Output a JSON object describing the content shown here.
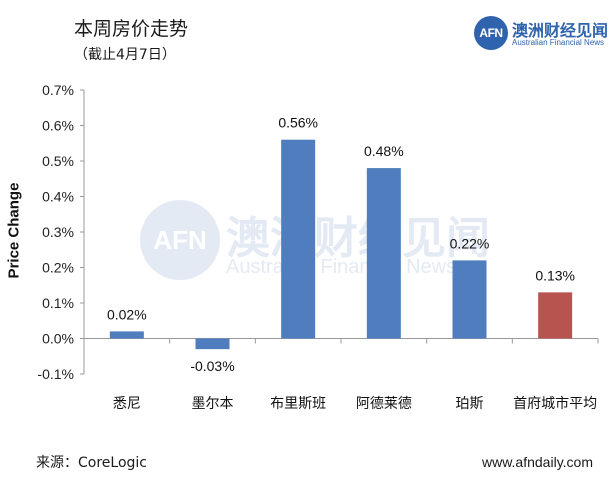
{
  "header": {
    "title": "本周房价走势",
    "subtitle": "（截止4月7日）"
  },
  "logo": {
    "mark": "AFN",
    "name_cn": "澳洲财经见闻",
    "name_en": "Australian Financial News"
  },
  "watermark": {
    "mark": "AFN",
    "name_cn": "澳洲财经见闻",
    "name_en": "Australian Financial News"
  },
  "footer": {
    "source": "来源：CoreLogic",
    "website": "www.afndaily.com"
  },
  "colors": {
    "bar": "#4f7dbe",
    "highlight_bar": "#b85450",
    "brand": "#2f63ad"
  },
  "chart_data": {
    "type": "bar",
    "ylabel": "Price Change",
    "categories": [
      "悉尼",
      "墨尔本",
      "布里斯班",
      "阿德莱德",
      "珀斯",
      "首府城市平均"
    ],
    "values": [
      0.02,
      -0.03,
      0.56,
      0.48,
      0.22,
      0.13
    ],
    "data_labels": [
      "0.02%",
      "-0.03%",
      "0.56%",
      "0.48%",
      "0.22%",
      "0.13%"
    ],
    "highlight_index": 5,
    "ylim": [
      -0.1,
      0.7
    ],
    "yticks": [
      -0.1,
      0.0,
      0.1,
      0.2,
      0.3,
      0.4,
      0.5,
      0.6,
      0.7
    ],
    "ytick_labels": [
      "-0.1%",
      "0.0%",
      "0.1%",
      "0.2%",
      "0.3%",
      "0.4%",
      "0.5%",
      "0.6%",
      "0.7%"
    ],
    "grid": false,
    "legend": "none"
  }
}
